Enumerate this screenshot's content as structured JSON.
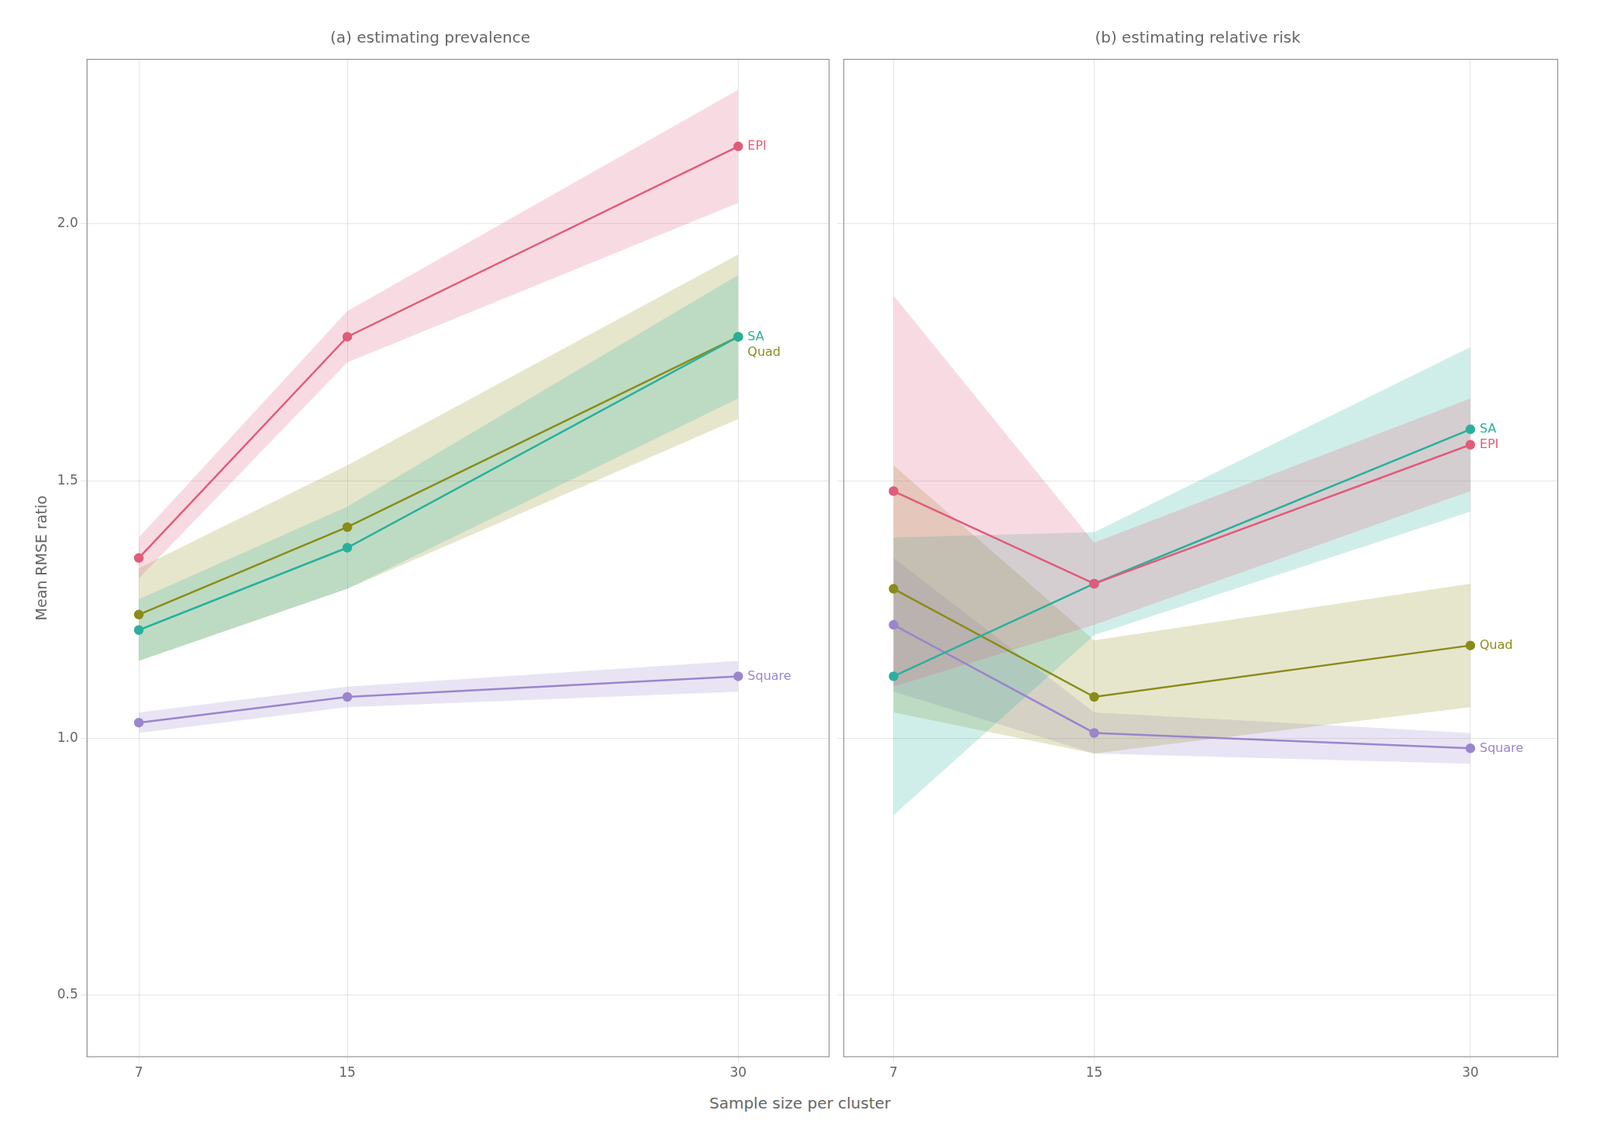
{
  "chart_data": [
    {
      "type": "line",
      "title": "(a) estimating prevalence",
      "ylabel": "Mean RMSE ratio",
      "xlabel": "Sample size per cluster",
      "x": [
        7,
        15,
        30
      ],
      "series": [
        {
          "name": "EPI",
          "color": "#e05c7a",
          "values": [
            1.35,
            1.78,
            2.15
          ],
          "lower": [
            1.31,
            1.73,
            2.04
          ],
          "upper": [
            1.39,
            1.83,
            2.26
          ]
        },
        {
          "name": "SA",
          "color": "#29b09d",
          "values": [
            1.21,
            1.37,
            1.78
          ],
          "lower": [
            1.15,
            1.29,
            1.66
          ],
          "upper": [
            1.27,
            1.45,
            1.9
          ]
        },
        {
          "name": "Quad",
          "color": "#8b8b1a",
          "values": [
            1.24,
            1.41,
            1.78
          ],
          "lower": [
            1.15,
            1.29,
            1.62
          ],
          "upper": [
            1.33,
            1.53,
            1.94
          ]
        },
        {
          "name": "Square",
          "color": "#9b85cc",
          "values": [
            1.03,
            1.08,
            1.12
          ],
          "lower": [
            1.01,
            1.06,
            1.09
          ],
          "upper": [
            1.05,
            1.1,
            1.15
          ]
        }
      ],
      "xlim": [
        5.0,
        33.5
      ],
      "xticks": [
        7,
        15,
        30
      ],
      "ylim": [
        0.38,
        2.32
      ],
      "yticks": [
        {
          "value": 0.5,
          "label": "0.5"
        },
        {
          "value": 1.0,
          "label": "1.0"
        },
        {
          "value": 1.5,
          "label": "1.5"
        },
        {
          "value": 2.0,
          "label": "2.0"
        }
      ],
      "grid": true,
      "marker": "circle"
    },
    {
      "type": "line",
      "title": "(b) estimating relative risk",
      "x": [
        7,
        15,
        30
      ],
      "series": [
        {
          "name": "EPI",
          "color": "#e05c7a",
          "values": [
            1.48,
            1.3,
            1.57
          ],
          "lower": [
            1.1,
            1.22,
            1.48
          ],
          "upper": [
            1.86,
            1.38,
            1.66
          ]
        },
        {
          "name": "SA",
          "color": "#29b09d",
          "values": [
            1.12,
            1.3,
            1.6
          ],
          "lower": [
            0.85,
            1.2,
            1.44
          ],
          "upper": [
            1.39,
            1.4,
            1.76
          ]
        },
        {
          "name": "Quad",
          "color": "#8b8b1a",
          "values": [
            1.29,
            1.08,
            1.18
          ],
          "lower": [
            1.05,
            0.97,
            1.06
          ],
          "upper": [
            1.53,
            1.19,
            1.3
          ]
        },
        {
          "name": "Square",
          "color": "#9b85cc",
          "values": [
            1.22,
            1.01,
            0.98
          ],
          "lower": [
            1.09,
            0.97,
            0.95
          ],
          "upper": [
            1.35,
            1.05,
            1.01
          ]
        }
      ],
      "xlim": [
        5.0,
        33.5
      ],
      "xticks": [
        7,
        15,
        30
      ],
      "ylim": [
        0.38,
        2.32
      ],
      "yticks": [
        {
          "value": 0.5,
          "label": "0.5"
        },
        {
          "value": 1.0,
          "label": "1.0"
        },
        {
          "value": 1.5,
          "label": "1.5"
        },
        {
          "value": 2.0,
          "label": "2.0"
        }
      ],
      "grid": true,
      "marker": "circle",
      "tick_labels": "x"
    }
  ]
}
